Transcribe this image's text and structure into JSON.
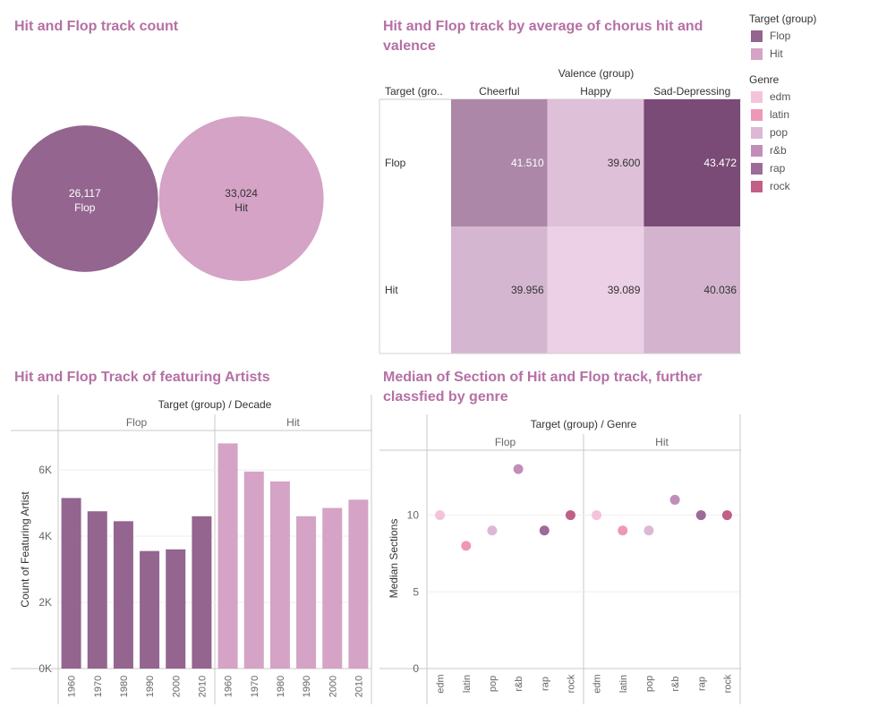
{
  "colors": {
    "flop": "#93658f",
    "hit": "#d4a3c5",
    "genre": {
      "edm": "#f5c3d9",
      "latin": "#ee98b8",
      "pop": "#dcb8d6",
      "r&b": "#c08eb8",
      "rap": "#9d6b97",
      "rock": "#c25f86"
    }
  },
  "titles": {
    "track_count": "Hit and Flop track count",
    "chorus_valence": "Hit and Flop track by average of chorus hit  and valence",
    "featuring": "Hit and Flop Track of featuring Artists",
    "sections": "Median of Section of Hit and Flop track, further classfied by genre"
  },
  "legend": {
    "target_title": "Target (group)",
    "target_items": [
      "Flop",
      "Hit"
    ],
    "genre_title": "Genre",
    "genre_items": [
      "edm",
      "latin",
      "pop",
      "r&b",
      "rap",
      "rock"
    ]
  },
  "chart_data": [
    {
      "type": "bubble",
      "title": "Hit and Flop track count",
      "series": [
        {
          "name": "Flop",
          "value": 26117,
          "label": "26,117"
        },
        {
          "name": "Hit",
          "value": 33024,
          "label": "33,024"
        }
      ]
    },
    {
      "type": "heatmap",
      "title": "Hit and Flop track by average of chorus hit  and valence",
      "col_header": "Valence (group)",
      "row_header": "Target (gro..",
      "columns": [
        "Cheerful",
        "Happy",
        "Sad-Depressing"
      ],
      "rows": [
        "Flop",
        "Hit"
      ],
      "values": [
        [
          41.51,
          39.6,
          43.472
        ],
        [
          39.956,
          39.089,
          40.036
        ]
      ],
      "labels": [
        [
          "41.510",
          "39.600",
          "43.472"
        ],
        [
          "39.956",
          "39.089",
          "40.036"
        ]
      ],
      "range": [
        39.089,
        43.472
      ]
    },
    {
      "type": "bar",
      "title": "Hit and Flop Track of featuring Artists",
      "header": "Target (group)  /  Decade",
      "ylabel": "Count of Featuring Artist",
      "ylim": [
        0,
        7000
      ],
      "yticks": [
        {
          "v": 0,
          "label": "0K"
        },
        {
          "v": 2000,
          "label": "2K"
        },
        {
          "v": 4000,
          "label": "4K"
        },
        {
          "v": 6000,
          "label": "6K"
        }
      ],
      "categories": [
        "1960",
        "1970",
        "1980",
        "1990",
        "2000",
        "2010"
      ],
      "series": [
        {
          "name": "Flop",
          "values": [
            5150,
            4750,
            4450,
            3550,
            3600,
            4600
          ]
        },
        {
          "name": "Hit",
          "values": [
            6800,
            5950,
            5650,
            4600,
            4850,
            5100
          ]
        }
      ]
    },
    {
      "type": "scatter",
      "title": "Median of Section of Hit and Flop track, further classfied by genre",
      "header": "Target (group)  /  Genre",
      "ylabel": "Median Sections",
      "ylim": [
        0,
        14
      ],
      "yticks": [
        {
          "v": 0,
          "label": "0"
        },
        {
          "v": 5,
          "label": "5"
        },
        {
          "v": 10,
          "label": "10"
        }
      ],
      "categories": [
        "edm",
        "latin",
        "pop",
        "r&b",
        "rap",
        "rock"
      ],
      "series": [
        {
          "name": "Flop",
          "values": [
            10,
            8,
            9,
            13,
            9,
            10
          ]
        },
        {
          "name": "Hit",
          "values": [
            10,
            9,
            9,
            11,
            10,
            10
          ]
        }
      ]
    }
  ]
}
